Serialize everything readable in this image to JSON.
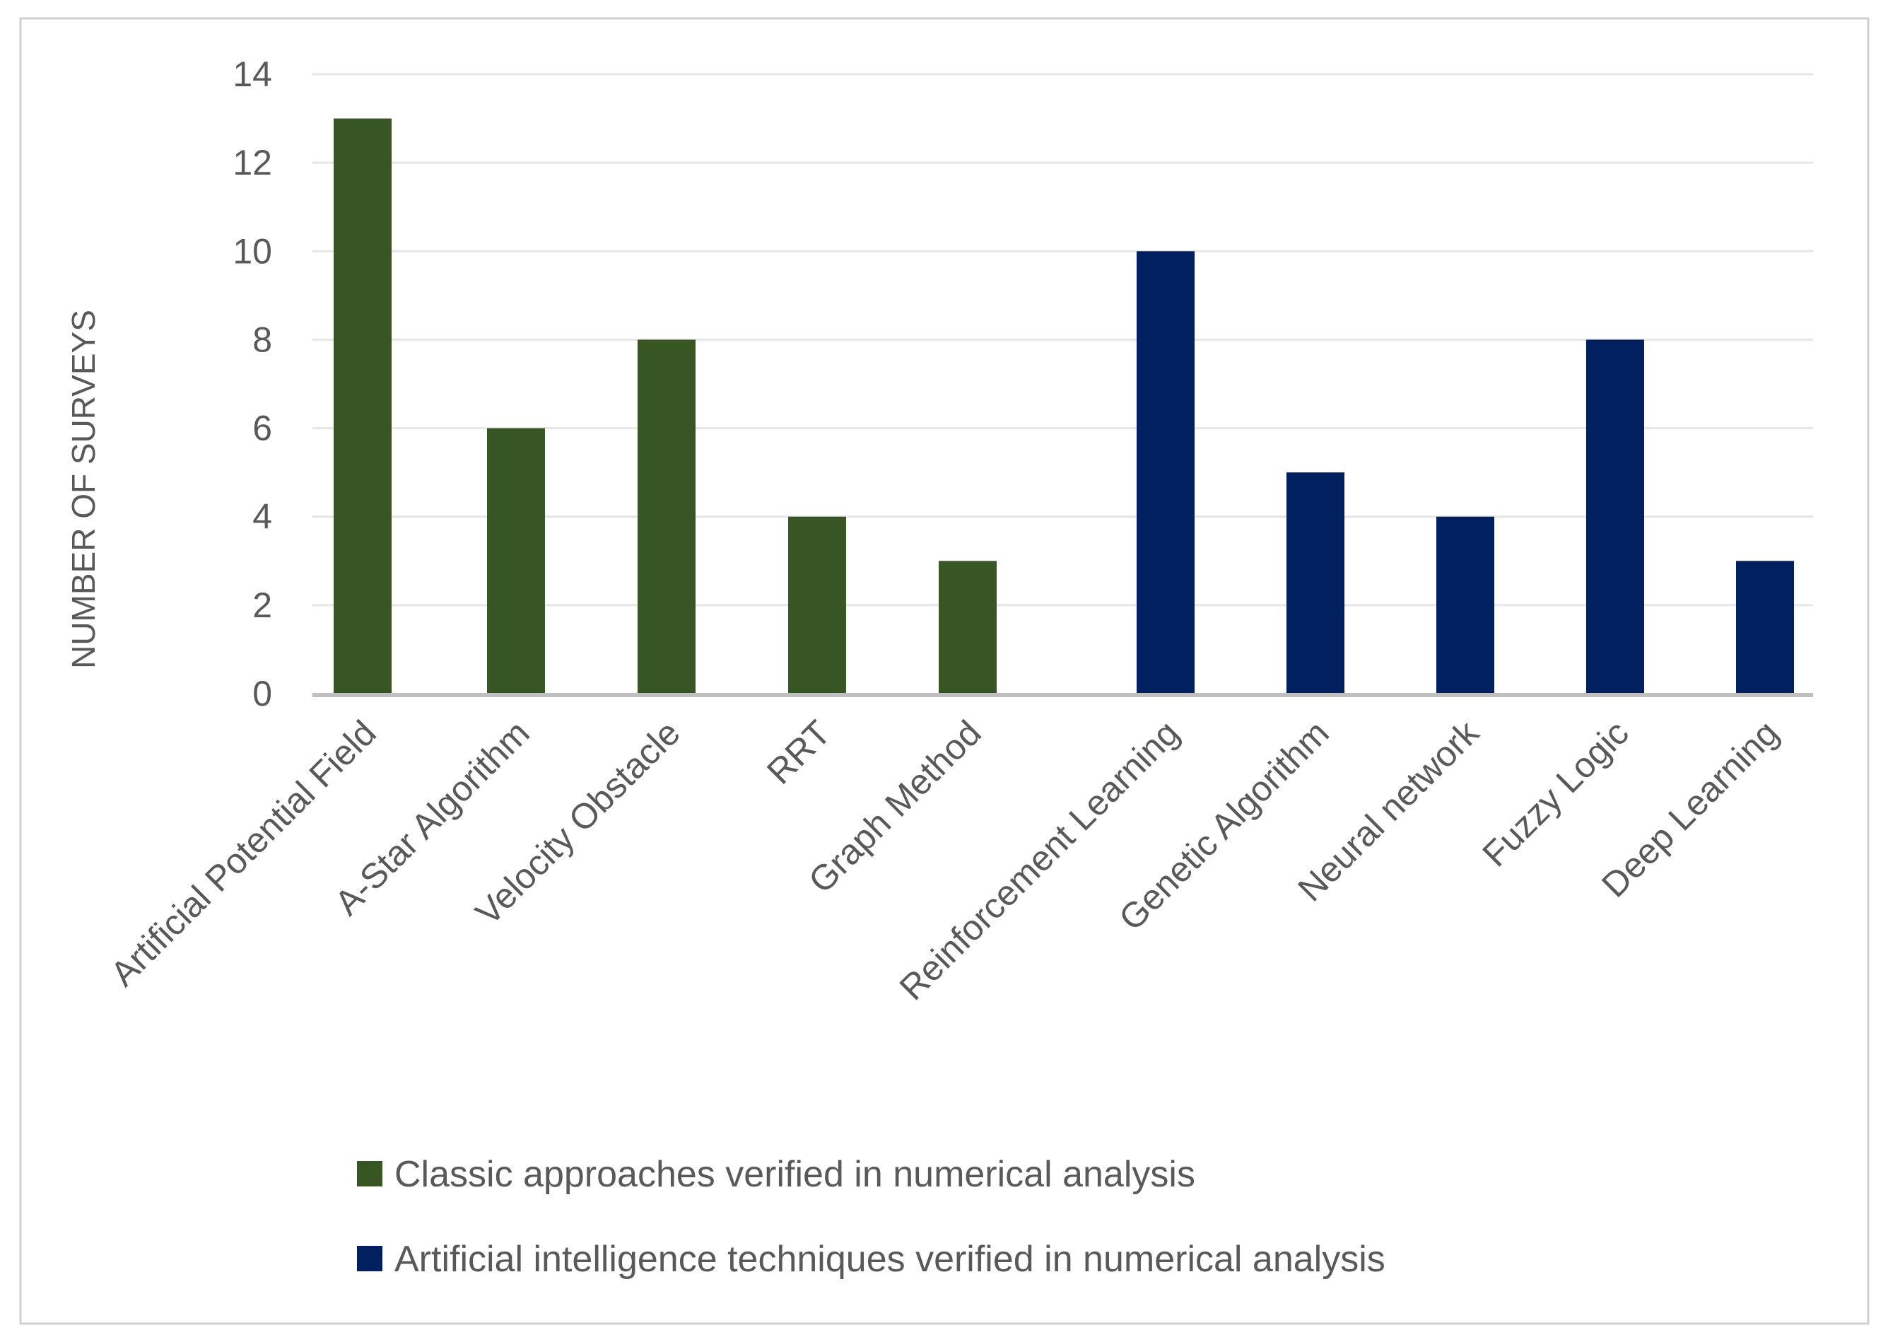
{
  "chart_data": {
    "type": "bar",
    "title": "",
    "xlabel": "",
    "ylabel": "NUMBER OF SURVEYS",
    "ylim": [
      0,
      14
    ],
    "yticks": [
      0,
      2,
      4,
      6,
      8,
      10,
      12,
      14
    ],
    "grid": true,
    "legend_position": "bottom",
    "categories": [
      "Artificial Potential Field",
      "A-Star Algorithm",
      "Velocity Obstacle",
      "RRT",
      "Graph Method",
      "Reinforcement Learning",
      "Genetic Algorithm",
      "Neural network",
      "Fuzzy Logic",
      "Deep Learning"
    ],
    "series": [
      {
        "name": "Classic approaches  verified in numerical analysis",
        "color": "#375623",
        "values": [
          13,
          6,
          8,
          4,
          3,
          null,
          null,
          null,
          null,
          null
        ]
      },
      {
        "name": "Artificial intelligence techniques verified in numerical analysis",
        "color": "#002060",
        "values": [
          null,
          null,
          null,
          null,
          null,
          10,
          5,
          4,
          8,
          3
        ]
      }
    ]
  },
  "colors": {
    "gridline": "#e6e6e6",
    "axis_line": "#bfbfbf",
    "frame": "#d0d0d0",
    "text": "#595959"
  }
}
